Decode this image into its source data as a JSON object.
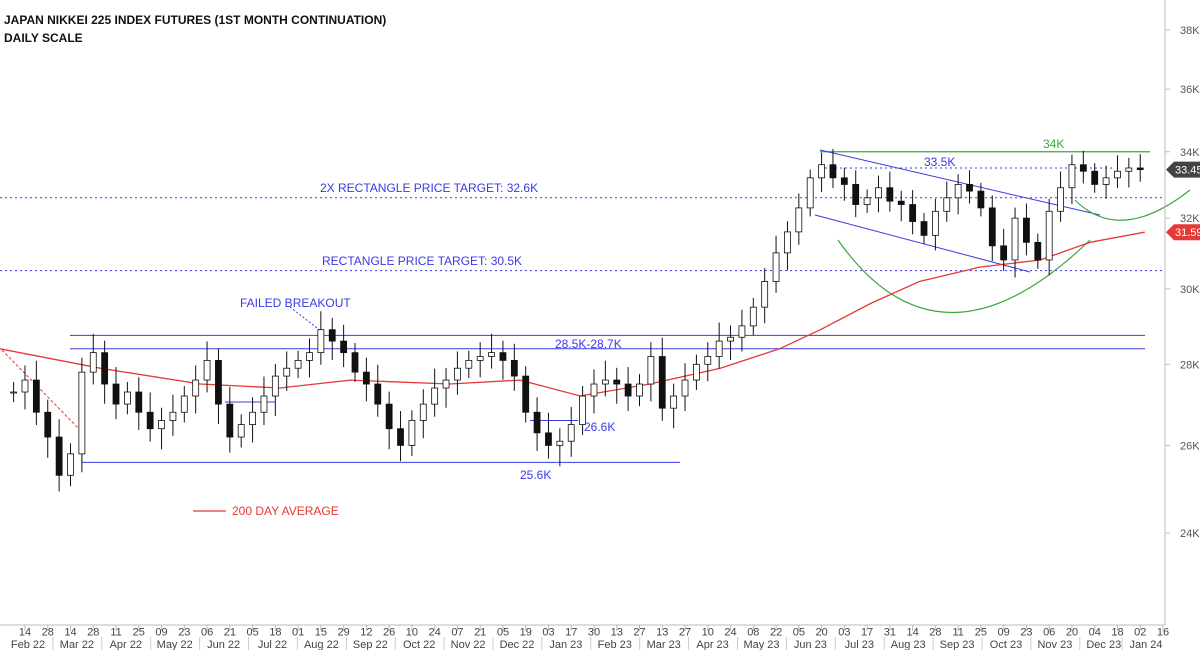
{
  "chart_data": {
    "type": "candlestick",
    "title": "JAPAN NIKKEI 225 INDEX FUTURES (1ST MONTH CONTINUATION)",
    "subtitle": "DAILY SCALE",
    "scale": "log",
    "ylim": [
      24,
      38
    ],
    "y_ticks": [
      "24K",
      "26K",
      "28K",
      "30K",
      "32K",
      "34K",
      "36K",
      "38K"
    ],
    "y_tick_values": [
      24,
      26,
      28,
      30,
      32,
      34,
      36,
      38
    ],
    "x_start_week": "2022-02-07",
    "x_interval": "weekly",
    "closes": [
      27.3,
      27.6,
      26.8,
      26.2,
      25.3,
      25.8,
      27.8,
      28.3,
      27.5,
      27.0,
      27.3,
      26.8,
      26.4,
      26.6,
      26.8,
      27.2,
      27.6,
      28.1,
      27.0,
      26.2,
      26.5,
      26.8,
      27.2,
      27.7,
      27.9,
      28.1,
      28.3,
      28.9,
      28.6,
      28.3,
      27.8,
      27.5,
      27.0,
      26.4,
      26.0,
      26.6,
      27.0,
      27.4,
      27.6,
      27.9,
      28.1,
      28.2,
      28.3,
      28.1,
      27.7,
      26.8,
      26.3,
      26.0,
      26.1,
      26.5,
      27.2,
      27.5,
      27.6,
      27.5,
      27.2,
      27.5,
      28.2,
      26.9,
      27.2,
      27.6,
      28.0,
      28.2,
      28.6,
      28.7,
      29.0,
      29.5,
      30.2,
      31.0,
      31.6,
      32.3,
      33.2,
      33.6,
      33.2,
      33.0,
      32.4,
      32.6,
      32.9,
      32.5,
      32.4,
      31.9,
      31.5,
      32.2,
      32.6,
      33.0,
      32.8,
      32.3,
      31.2,
      30.8,
      32.0,
      31.3,
      30.8,
      32.2,
      32.9,
      33.6,
      33.4,
      33.0,
      33.2,
      33.4,
      33.5,
      33.45
    ],
    "ma200": {
      "name": "200 DAY AVERAGE",
      "color": "#e53935",
      "points": [
        [
          -1.2,
          28.4
        ],
        [
          7.6,
          27.9
        ],
        [
          16.4,
          27.5
        ],
        [
          23.4,
          27.4
        ],
        [
          29.6,
          27.6
        ],
        [
          38.3,
          27.5
        ],
        [
          44.5,
          27.6
        ],
        [
          49.8,
          27.2
        ],
        [
          55.9,
          27.5
        ],
        [
          62.1,
          27.9
        ],
        [
          67.3,
          28.4
        ],
        [
          70.9,
          28.9
        ],
        [
          75.3,
          29.6
        ],
        [
          79.6,
          30.2
        ],
        [
          84.9,
          30.6
        ],
        [
          90.2,
          30.8
        ],
        [
          94.6,
          31.3
        ],
        [
          99.4,
          31.59
        ]
      ]
    },
    "last_price_label": "33.45K",
    "ma_last_label": "31.59K",
    "x_day_ticks": [
      "14",
      "28",
      "14",
      "28",
      "11",
      "25",
      "09",
      "23",
      "06",
      "21",
      "05",
      "18",
      "01",
      "15",
      "29",
      "12",
      "26",
      "10",
      "24",
      "07",
      "21",
      "05",
      "19",
      "03",
      "17",
      "30",
      "13",
      "27",
      "13",
      "27",
      "10",
      "24",
      "08",
      "22",
      "05",
      "20",
      "03",
      "17",
      "31",
      "14",
      "28",
      "11",
      "25",
      "09",
      "23",
      "06",
      "20",
      "04",
      "18",
      "02",
      "16"
    ],
    "x_month_labels": [
      "Feb 22",
      "Mar 22",
      "Apr 22",
      "May 22",
      "Jun 22",
      "Jul 22",
      "Aug 22",
      "Sep 22",
      "Oct 22",
      "Nov 22",
      "Dec 22",
      "Jan 23",
      "Feb 23",
      "Mar 23",
      "Apr 23",
      "May 23",
      "Jun 23",
      "Jul 23",
      "Aug 23",
      "Sep 23",
      "Oct 23",
      "Nov 23",
      "Dec 23",
      "Jan 24"
    ],
    "annotations": {
      "target2x": {
        "text": "2X RECTANGLE PRICE TARGET: 32.6K",
        "price": 32.6
      },
      "target": {
        "text": "RECTANGLE PRICE TARGET: 30.5K",
        "price": 30.5
      },
      "failed": {
        "text": "FAILED BREAKOUT"
      },
      "range_band": {
        "text": "28.5K-28.7K",
        "upper": 28.75,
        "lower": 28.4
      },
      "support": {
        "text": "25.6K",
        "price": 25.6
      },
      "mini": {
        "text": "26.6K",
        "price": 26.6
      },
      "mid_res": {
        "text": "33.5K",
        "price": 33.5
      },
      "top": {
        "text": "34K",
        "price": 34.0
      },
      "legend": {
        "text": "200 DAY AVERAGE"
      }
    },
    "colors": {
      "annotation": "#3a3ae6",
      "top_line": "#3aa83a",
      "ma": "#e53935",
      "candle": "#111111"
    }
  }
}
